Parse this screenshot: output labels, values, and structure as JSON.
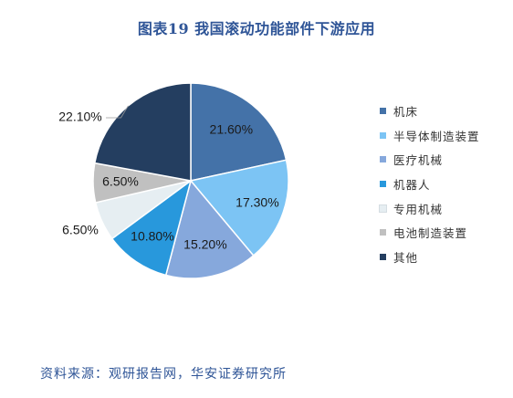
{
  "title": "图表19 我国滚动功能部件下游应用",
  "source": "资料来源：观研报告网，华安证券研究所",
  "chart_data": {
    "type": "pie",
    "title": "图表19 我国滚动功能部件下游应用",
    "legend_position": "right",
    "slices": [
      {
        "name": "机床",
        "value": 21.6,
        "label": "21.60%",
        "color": "#4472a8"
      },
      {
        "name": "半导体制造装置",
        "value": 17.3,
        "label": "17.30%",
        "color": "#7cc4f4"
      },
      {
        "name": "医疗机械",
        "value": 15.2,
        "label": "15.20%",
        "color": "#86a8dc"
      },
      {
        "name": "机器人",
        "value": 10.8,
        "label": "10.80%",
        "color": "#2898dc"
      },
      {
        "name": "专用机械",
        "value": 6.5,
        "label": "6.50%",
        "color": "#e6eef2"
      },
      {
        "name": "电池制造装置",
        "value": 6.5,
        "label": "6.50%",
        "color": "#c0c0c0"
      },
      {
        "name": "其他",
        "value": 22.1,
        "label": "22.10%",
        "color": "#243e60"
      }
    ]
  }
}
